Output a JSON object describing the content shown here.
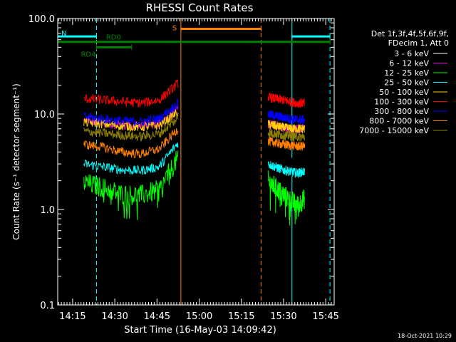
{
  "chart_data": {
    "type": "line",
    "title": "RHESSI Count Rates",
    "xlabel": "Start Time (16-May-03 14:09:42)",
    "ylabel": "Count Rate (s⁻¹ detector segment⁻¹)",
    "yscale": "log",
    "ylim": [
      0.1,
      100.0
    ],
    "xlim": [
      "14:09:42",
      "15:48:00"
    ],
    "x_ticks": [
      "14:15",
      "14:30",
      "14:45",
      "15:00",
      "15:15",
      "15:30",
      "15:45"
    ],
    "y_ticks": [
      "0.1",
      "1.0",
      "10.0",
      "100.0"
    ],
    "legend_header": [
      "Det 1f,3f,4f,5f,6f,9f,",
      "FDecim 1, Att 0"
    ],
    "series": [
      {
        "name": "3 - 6 keV",
        "color": "#000000",
        "seg1": [
          5.4,
          6.4,
          5.6,
          5.2,
          6.0,
          9.5
        ],
        "seg2": [
          5.8,
          4.6,
          3.6,
          2.6,
          3.2,
          3.0
        ]
      },
      {
        "name": "6 - 12 keV",
        "color": "#e000e0",
        "seg1": [
          8.8,
          8.2,
          7.7,
          7.5,
          8.0,
          11.0
        ],
        "seg2": [
          7.8,
          7.6,
          7.3,
          6.9,
          7.0,
          7.0
        ]
      },
      {
        "name": "12 - 25 keV",
        "color": "#00ff00",
        "seg1": [
          1.9,
          1.7,
          1.45,
          1.4,
          1.6,
          3.5
        ],
        "seg2": [
          2.0,
          1.7,
          1.45,
          1.25,
          1.1,
          1.3
        ]
      },
      {
        "name": "25 - 50 keV",
        "color": "#00ffff",
        "seg1": [
          3.0,
          2.8,
          2.6,
          2.55,
          2.8,
          5.0
        ],
        "seg2": [
          3.0,
          2.8,
          2.6,
          2.5,
          2.4,
          2.5
        ]
      },
      {
        "name": "50 - 100 keV",
        "color": "#ffd000",
        "seg1": [
          8.2,
          7.9,
          7.5,
          7.3,
          7.6,
          10.5
        ],
        "seg2": [
          7.8,
          7.5,
          7.2,
          7.0,
          7.0,
          7.0
        ]
      },
      {
        "name": "100 - 300 keV",
        "color": "#ff0000",
        "seg1": [
          14.5,
          14.0,
          13.5,
          13.0,
          14.0,
          21.0
        ],
        "seg2": [
          15.0,
          14.5,
          14.0,
          13.5,
          13.0,
          13.0
        ]
      },
      {
        "name": "300 - 800 keV",
        "color": "#0000ff",
        "seg1": [
          9.4,
          8.9,
          8.5,
          8.3,
          9.0,
          13.0
        ],
        "seg2": [
          10.0,
          9.6,
          9.2,
          8.9,
          8.7,
          8.7
        ]
      },
      {
        "name": "800 - 7000 keV",
        "color": "#ff8000",
        "seg1": [
          4.8,
          4.5,
          4.0,
          3.8,
          4.3,
          7.0
        ],
        "seg2": [
          5.2,
          5.0,
          4.8,
          4.7,
          4.6,
          4.6
        ]
      },
      {
        "name": "7000 - 15000 keV",
        "color": "#908000",
        "seg1": [
          6.6,
          6.3,
          6.0,
          5.8,
          6.2,
          9.0
        ],
        "seg2": [
          6.4,
          6.2,
          6.0,
          5.9,
          5.8,
          5.8
        ]
      }
    ],
    "seg1_range": [
      "14:19:00",
      "14:52:30"
    ],
    "seg2_range": [
      "15:24:30",
      "15:37:30"
    ],
    "markers": {
      "cyan_solid": [
        "14:09:42",
        "15:33:00"
      ],
      "cyan_dashed": [
        "14:23:30",
        "15:46:30"
      ],
      "orange_solid": [
        "14:53:30"
      ],
      "orange_dashed": [
        "15:22:00"
      ]
    },
    "bars": [
      {
        "label": "N",
        "color": "#00ffff",
        "from": "14:09:42",
        "to": "14:23:30",
        "level": 65
      },
      {
        "label": "",
        "color": "#00ffff",
        "from": "15:33:00",
        "to": "15:46:30",
        "level": 65
      },
      {
        "label": "S",
        "color": "#ff8000",
        "from": "14:53:30",
        "to": "15:22:00",
        "level": 78
      },
      {
        "label": "RD0",
        "color": "#008000",
        "from": "14:09:42",
        "to": "15:46:30",
        "level": 57
      },
      {
        "label": "RD4",
        "color": "#008000",
        "from": "14:23:30",
        "to": "14:36:00",
        "level": 50
      }
    ]
  },
  "timestamp": "18-Oct-2021 10:29"
}
